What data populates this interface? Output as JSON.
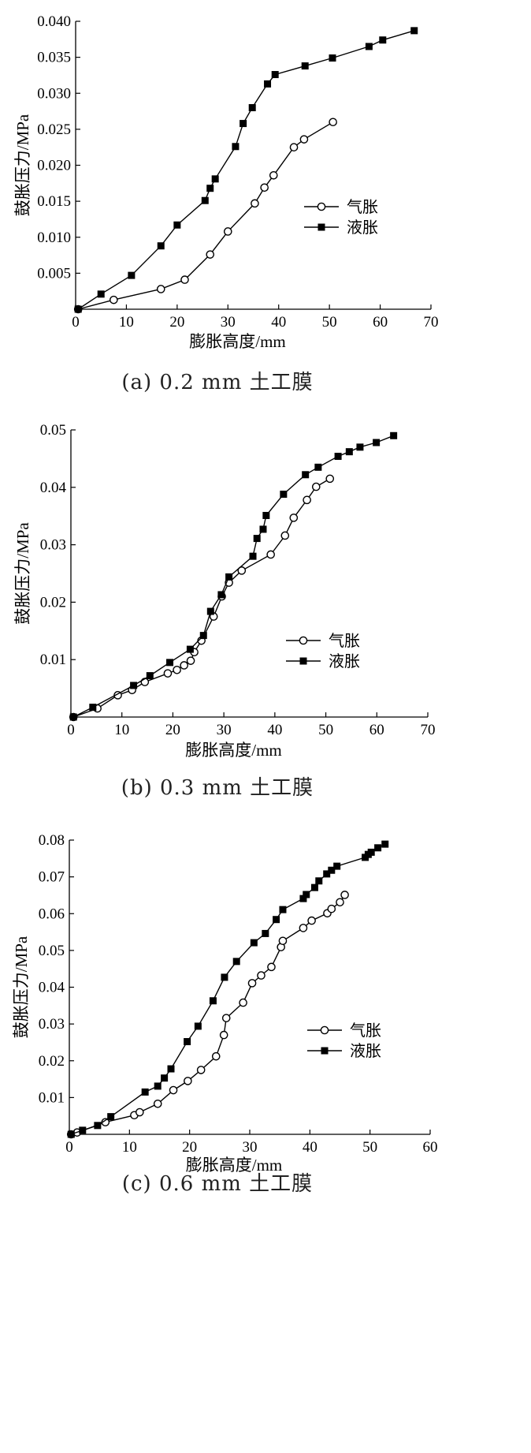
{
  "chart_data": [
    {
      "type": "line",
      "caption": "(a) 0.2 mm 土工膜",
      "xlabel": "膨胀高度/mm",
      "ylabel": "鼓胀压力/MPa",
      "xlim": [
        0,
        70
      ],
      "ylim": [
        0,
        0.04
      ],
      "x_ticks": [
        "0",
        "10",
        "20",
        "30",
        "40",
        "50",
        "60",
        "70"
      ],
      "y_ticks": [
        "0.005",
        "0.010",
        "0.015",
        "0.020",
        "0.025",
        "0.030",
        "0.035",
        "0.040"
      ],
      "legend_position": "right-middle",
      "series": [
        {
          "name": "气胀",
          "marker": "open-circle",
          "points": [
            [
              0.5,
              0
            ],
            [
              7.5,
              0.0013
            ],
            [
              16.8,
              0.0028
            ],
            [
              21.5,
              0.0041
            ],
            [
              26.5,
              0.0076
            ],
            [
              30,
              0.0108
            ],
            [
              35.3,
              0.0147
            ],
            [
              37.2,
              0.0169
            ],
            [
              39,
              0.0186
            ],
            [
              43,
              0.0225
            ],
            [
              45,
              0.0236
            ],
            [
              50.7,
              0.026
            ]
          ]
        },
        {
          "name": "液胀",
          "marker": "filled-square",
          "points": [
            [
              0.5,
              0
            ],
            [
              5,
              0.0021
            ],
            [
              11,
              0.0047
            ],
            [
              16.8,
              0.0088
            ],
            [
              20,
              0.0117
            ],
            [
              25.5,
              0.0151
            ],
            [
              26.5,
              0.0168
            ],
            [
              27.5,
              0.0181
            ],
            [
              31.5,
              0.0226
            ],
            [
              33,
              0.0258
            ],
            [
              34.8,
              0.028
            ],
            [
              37.8,
              0.0313
            ],
            [
              39.3,
              0.0326
            ],
            [
              45.2,
              0.0338
            ],
            [
              50.6,
              0.0349
            ],
            [
              57.8,
              0.0365
            ],
            [
              60.5,
              0.0374
            ],
            [
              66.7,
              0.0387
            ]
          ]
        }
      ]
    },
    {
      "type": "line",
      "caption": "(b) 0.3 mm 土工膜",
      "xlabel": "膨胀高度/mm",
      "ylabel": "鼓胀压力/MPa",
      "xlim": [
        0,
        70
      ],
      "ylim": [
        0,
        0.05
      ],
      "x_ticks": [
        "0",
        "10",
        "20",
        "30",
        "40",
        "50",
        "60",
        "70"
      ],
      "y_ticks": [
        "0.01",
        "0.02",
        "0.03",
        "0.04",
        "0.05"
      ],
      "legend_position": "right-middle",
      "series": [
        {
          "name": "气胀",
          "marker": "open-circle",
          "points": [
            [
              0.5,
              0
            ],
            [
              5.2,
              0.0015
            ],
            [
              9.2,
              0.0038
            ],
            [
              12,
              0.0047
            ],
            [
              14.5,
              0.0061
            ],
            [
              19,
              0.0076
            ],
            [
              20.8,
              0.0082
            ],
            [
              22.2,
              0.009
            ],
            [
              23.5,
              0.0098
            ],
            [
              24.2,
              0.0113
            ],
            [
              25.6,
              0.0133
            ],
            [
              28,
              0.0175
            ],
            [
              29.6,
              0.021
            ],
            [
              31,
              0.0234
            ],
            [
              33.5,
              0.0255
            ],
            [
              39.2,
              0.0283
            ],
            [
              42,
              0.0316
            ],
            [
              43.7,
              0.0347
            ],
            [
              46.3,
              0.0378
            ],
            [
              48.1,
              0.0401
            ],
            [
              50.8,
              0.0415
            ]
          ]
        },
        {
          "name": "液胀",
          "marker": "filled-square",
          "points": [
            [
              0.5,
              0
            ],
            [
              4.3,
              0.0017
            ],
            [
              12.3,
              0.0055
            ],
            [
              15.5,
              0.0072
            ],
            [
              19.4,
              0.0095
            ],
            [
              23.4,
              0.0118
            ],
            [
              26,
              0.0142
            ],
            [
              27.4,
              0.0184
            ],
            [
              29.5,
              0.0213
            ],
            [
              31,
              0.0244
            ],
            [
              35.7,
              0.028
            ],
            [
              36.5,
              0.0311
            ],
            [
              37.7,
              0.0327
            ],
            [
              38.3,
              0.0351
            ],
            [
              41.7,
              0.0388
            ],
            [
              46,
              0.0422
            ],
            [
              48.5,
              0.0435
            ],
            [
              52.4,
              0.0454
            ],
            [
              54.6,
              0.0462
            ],
            [
              56.7,
              0.047
            ],
            [
              59.9,
              0.0478
            ],
            [
              63.3,
              0.049
            ]
          ]
        }
      ]
    },
    {
      "type": "line",
      "caption": "(c) 0.6 mm 土工膜",
      "xlabel": "膨胀高度/mm",
      "ylabel": "鼓胀压力/MPa",
      "xlim": [
        0,
        60
      ],
      "ylim": [
        0,
        0.08
      ],
      "x_ticks": [
        "0",
        "10",
        "20",
        "30",
        "40",
        "50",
        "60"
      ],
      "y_ticks": [
        "0.01",
        "0.02",
        "0.03",
        "0.04",
        "0.05",
        "0.06",
        "0.07",
        "0.08"
      ],
      "legend_position": "right-middle",
      "series": [
        {
          "name": "气胀",
          "marker": "open-circle",
          "points": [
            [
              0.3,
              0
            ],
            [
              1.3,
              0.0005
            ],
            [
              6,
              0.0033
            ],
            [
              10.8,
              0.0052
            ],
            [
              11.7,
              0.006
            ],
            [
              14.7,
              0.0083
            ],
            [
              17.3,
              0.012
            ],
            [
              19.7,
              0.0145
            ],
            [
              21.9,
              0.0175
            ],
            [
              24.4,
              0.0212
            ],
            [
              25.7,
              0.027
            ],
            [
              26.1,
              0.0316
            ],
            [
              28.9,
              0.0358
            ],
            [
              30.4,
              0.0411
            ],
            [
              31.9,
              0.0432
            ],
            [
              33.6,
              0.0455
            ],
            [
              35.2,
              0.0509
            ],
            [
              35.5,
              0.0526
            ],
            [
              38.9,
              0.0561
            ],
            [
              40.3,
              0.0581
            ],
            [
              42.9,
              0.0601
            ],
            [
              43.6,
              0.0613
            ],
            [
              45,
              0.0631
            ],
            [
              45.8,
              0.0651
            ]
          ]
        },
        {
          "name": "液胀",
          "marker": "filled-square",
          "points": [
            [
              0.3,
              0
            ],
            [
              2.2,
              0.0011
            ],
            [
              4.7,
              0.0024
            ],
            [
              6.9,
              0.0048
            ],
            [
              12.6,
              0.0115
            ],
            [
              14.7,
              0.0131
            ],
            [
              15.8,
              0.0153
            ],
            [
              16.9,
              0.0178
            ],
            [
              19.6,
              0.0252
            ],
            [
              21.4,
              0.0294
            ],
            [
              23.9,
              0.0363
            ],
            [
              25.8,
              0.0427
            ],
            [
              27.8,
              0.047
            ],
            [
              30.7,
              0.0521
            ],
            [
              32.6,
              0.0546
            ],
            [
              34.4,
              0.0584
            ],
            [
              35.5,
              0.0611
            ],
            [
              38.9,
              0.0641
            ],
            [
              39.4,
              0.0652
            ],
            [
              40.8,
              0.0671
            ],
            [
              41.5,
              0.0689
            ],
            [
              42.8,
              0.0708
            ],
            [
              43.6,
              0.0718
            ],
            [
              44.5,
              0.0729
            ],
            [
              49.2,
              0.0753
            ],
            [
              49.7,
              0.0761
            ],
            [
              50.2,
              0.0767
            ],
            [
              51.3,
              0.0779
            ],
            [
              52.5,
              0.0789
            ]
          ]
        }
      ]
    }
  ]
}
